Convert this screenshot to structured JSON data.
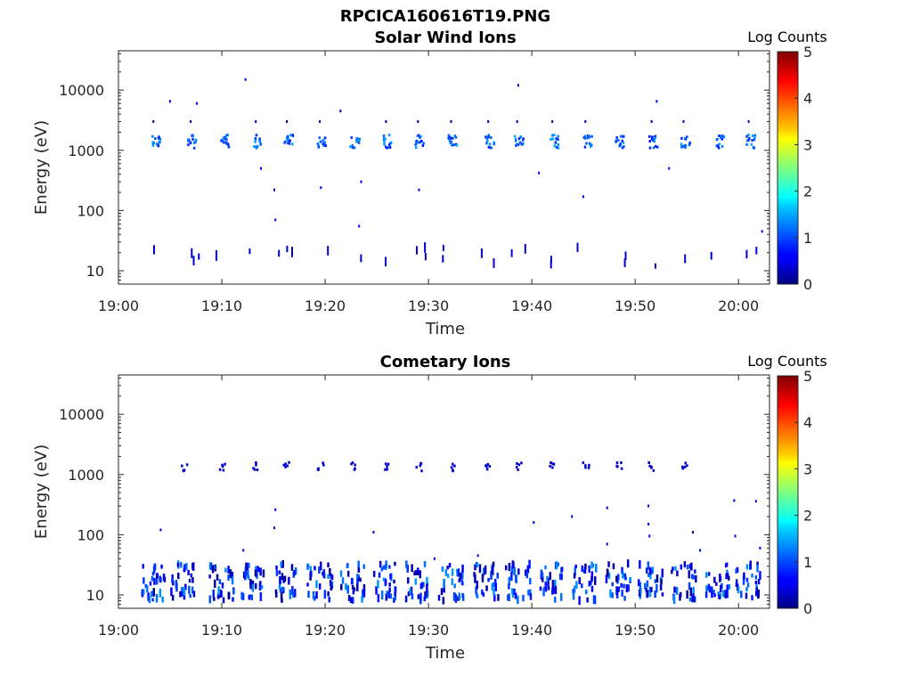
{
  "figure": {
    "filename": "RPCICA160616T19.PNG"
  },
  "chart_data": [
    {
      "type": "heatmap",
      "title": "Solar Wind Ions",
      "xlabel": "Time",
      "ylabel": "Energy (eV)",
      "xlim": [
        "19:00",
        "20:03"
      ],
      "xticks": [
        "19:00",
        "19:10",
        "19:20",
        "19:30",
        "19:40",
        "19:50",
        "20:00"
      ],
      "ylim": [
        6,
        45000
      ],
      "yscale": "log",
      "yticks": [
        "10",
        "100",
        "1000",
        "10000"
      ],
      "colorbar": {
        "label": "Log Counts",
        "range": [
          0,
          5
        ],
        "ticks": [
          "0",
          "1",
          "2",
          "3",
          "4",
          "5"
        ],
        "colormap": "jet"
      },
      "grid": false,
      "bursts": {
        "times_min": [
          3.3,
          6.9,
          10.0,
          13.2,
          16.2,
          19.4,
          22.6,
          25.8,
          28.9,
          32.1,
          35.7,
          38.5,
          41.9,
          45.1,
          48.3,
          51.5,
          54.6,
          57.9,
          60.9
        ],
        "main_energy_ev": 1400,
        "main_intensity": 1.1,
        "low_energy_ev": [
          12,
          25
        ],
        "low_intensity": 0.4
      },
      "scattered_points": [
        {
          "t": 4.9,
          "e": 6500,
          "v": 0.5
        },
        {
          "t": 7.5,
          "e": 6000,
          "v": 0.5
        },
        {
          "t": 12.2,
          "e": 15000,
          "v": 0.5
        },
        {
          "t": 13.7,
          "e": 500,
          "v": 0.5
        },
        {
          "t": 15.0,
          "e": 220,
          "v": 0.5
        },
        {
          "t": 15.1,
          "e": 70,
          "v": 0.5
        },
        {
          "t": 19.5,
          "e": 240,
          "v": 0.5
        },
        {
          "t": 21.4,
          "e": 4500,
          "v": 0.5
        },
        {
          "t": 23.4,
          "e": 300,
          "v": 0.5
        },
        {
          "t": 23.2,
          "e": 55,
          "v": 0.5
        },
        {
          "t": 29.0,
          "e": 220,
          "v": 0.5
        },
        {
          "t": 38.6,
          "e": 12000,
          "v": 0.5
        },
        {
          "t": 40.6,
          "e": 420,
          "v": 0.5
        },
        {
          "t": 44.9,
          "e": 170,
          "v": 0.5
        },
        {
          "t": 52.0,
          "e": 6500,
          "v": 0.5
        },
        {
          "t": 53.2,
          "e": 500,
          "v": 0.5
        },
        {
          "t": 62.2,
          "e": 45,
          "v": 0.6
        }
      ]
    },
    {
      "type": "heatmap",
      "title": "Cometary Ions",
      "xlabel": "Time",
      "ylabel": "Energy (eV)",
      "xlim": [
        "19:00",
        "20:03"
      ],
      "xticks": [
        "19:00",
        "19:10",
        "19:20",
        "19:30",
        "19:40",
        "19:50",
        "20:00"
      ],
      "ylim": [
        6,
        45000
      ],
      "yscale": "log",
      "yticks": [
        "10",
        "100",
        "1000",
        "10000"
      ],
      "colorbar": {
        "label": "Log Counts",
        "range": [
          0,
          5
        ],
        "ticks": [
          "0",
          "1",
          "2",
          "3",
          "4",
          "5"
        ],
        "colormap": "jet"
      },
      "grid": false,
      "bursts": {
        "times_min": [
          3.3,
          6.2,
          9.9,
          13.0,
          16.1,
          19.4,
          22.6,
          25.8,
          28.9,
          32.1,
          35.5,
          38.6,
          41.8,
          45.1,
          48.3,
          51.4,
          54.6,
          57.9,
          60.8
        ],
        "main_energy_ev": 18,
        "main_intensity": 0.8,
        "upper_energy_ev": 1350,
        "upper_intensity": 0.4
      },
      "scattered_points": [
        {
          "t": 4.0,
          "e": 120,
          "v": 0.5
        },
        {
          "t": 12.0,
          "e": 55,
          "v": 0.4
        },
        {
          "t": 15.1,
          "e": 260,
          "v": 0.5
        },
        {
          "t": 15.0,
          "e": 130,
          "v": 0.5
        },
        {
          "t": 24.6,
          "e": 110,
          "v": 0.5
        },
        {
          "t": 30.5,
          "e": 40,
          "v": 0.5
        },
        {
          "t": 34.7,
          "e": 45,
          "v": 0.5
        },
        {
          "t": 40.1,
          "e": 160,
          "v": 0.5
        },
        {
          "t": 43.8,
          "e": 200,
          "v": 0.5
        },
        {
          "t": 47.2,
          "e": 280,
          "v": 0.5
        },
        {
          "t": 47.2,
          "e": 70,
          "v": 0.5
        },
        {
          "t": 51.2,
          "e": 300,
          "v": 0.5
        },
        {
          "t": 51.2,
          "e": 150,
          "v": 0.6
        },
        {
          "t": 51.3,
          "e": 95,
          "v": 0.5
        },
        {
          "t": 55.5,
          "e": 110,
          "v": 0.5
        },
        {
          "t": 56.2,
          "e": 55,
          "v": 0.5
        },
        {
          "t": 59.5,
          "e": 370,
          "v": 0.5
        },
        {
          "t": 59.6,
          "e": 95,
          "v": 0.5
        },
        {
          "t": 61.6,
          "e": 360,
          "v": 0.5
        },
        {
          "t": 62.0,
          "e": 60,
          "v": 0.6
        }
      ]
    }
  ]
}
